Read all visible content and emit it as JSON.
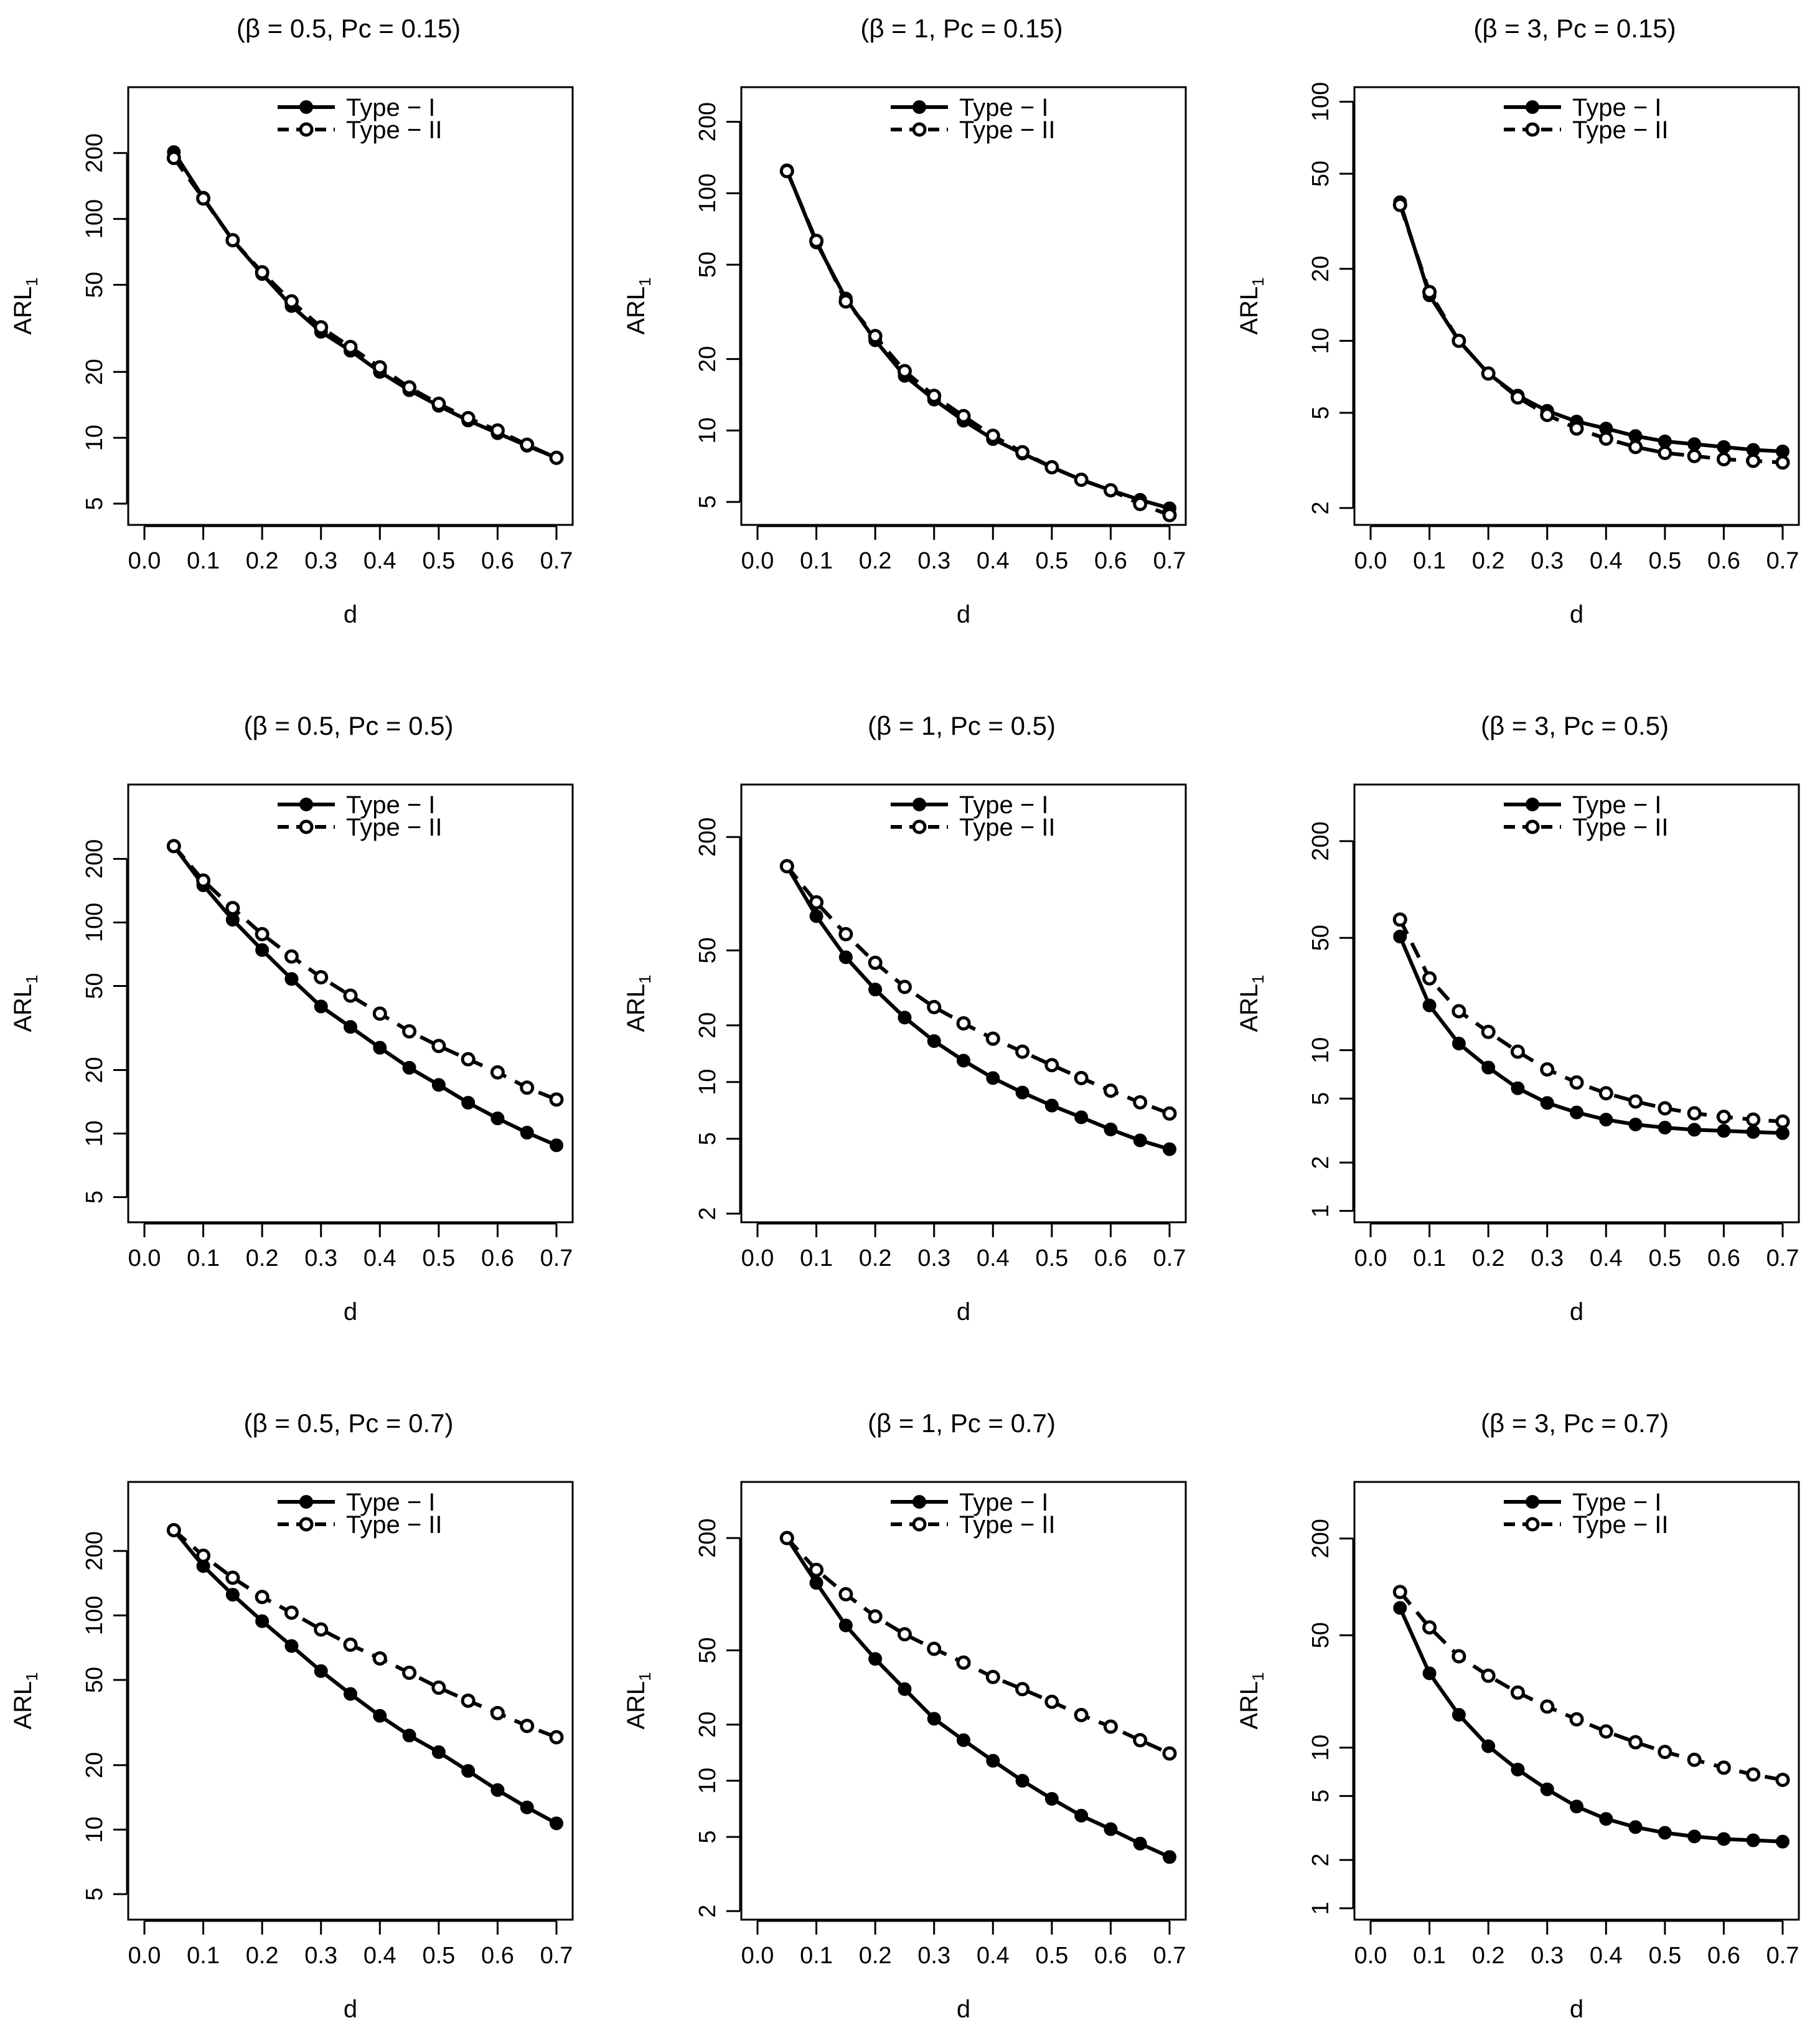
{
  "chart_data": [
    {
      "type": "line",
      "title": "(β = 0.5, Pc = 0.15)",
      "xlabel": "d",
      "ylabel": "ARL",
      "ylabel_sub": "1",
      "xlim": [
        0.0,
        0.7
      ],
      "xticks": [
        0.0,
        0.1,
        0.2,
        0.3,
        0.4,
        0.5,
        0.6,
        0.7
      ],
      "xtick_labels": [
        "0.0",
        "0.1",
        "0.2",
        "0.3",
        "0.4",
        "0.5",
        "0.6",
        "0.7"
      ],
      "ylog": true,
      "ylim": [
        4.0,
        400
      ],
      "yticks": [
        5,
        10,
        20,
        50,
        100,
        200
      ],
      "ytick_labels": [
        "5",
        "10",
        "20",
        "50",
        "100",
        "200"
      ],
      "legend": {
        "position": "top-center",
        "entries": [
          "Type − I",
          "Type − II"
        ]
      },
      "x": [
        0.05,
        0.1,
        0.15,
        0.2,
        0.25,
        0.3,
        0.35,
        0.4,
        0.45,
        0.5,
        0.55,
        0.6,
        0.65,
        0.7
      ],
      "series": [
        {
          "name": "Type − I",
          "style": "solid-filled",
          "values": [
            202,
            125,
            80,
            56,
            40,
            30.5,
            25,
            20,
            16.5,
            14,
            12,
            10.5,
            9.2,
            8.1
          ]
        },
        {
          "name": "Type − II",
          "style": "dashed-open",
          "values": [
            190,
            124,
            80,
            57,
            42,
            32,
            26,
            21,
            17,
            14.3,
            12.3,
            10.8,
            9.3,
            8.1
          ]
        }
      ]
    },
    {
      "type": "line",
      "title": "(β = 1, Pc = 0.15)",
      "xlabel": "d",
      "ylabel": "ARL",
      "ylabel_sub": "1",
      "xlim": [
        0.0,
        0.7
      ],
      "xticks": [
        0.0,
        0.1,
        0.2,
        0.3,
        0.4,
        0.5,
        0.6,
        0.7
      ],
      "xtick_labels": [
        "0.0",
        "0.1",
        "0.2",
        "0.3",
        "0.4",
        "0.5",
        "0.6",
        "0.7"
      ],
      "ylog": true,
      "ylim": [
        4.0,
        280
      ],
      "yticks": [
        5,
        10,
        20,
        50,
        100,
        200
      ],
      "ytick_labels": [
        "5",
        "10",
        "20",
        "50",
        "100",
        "200"
      ],
      "legend": {
        "position": "top-center",
        "entries": [
          "Type − I",
          "Type − II"
        ]
      },
      "x": [
        0.05,
        0.1,
        0.15,
        0.2,
        0.25,
        0.3,
        0.35,
        0.4,
        0.45,
        0.5,
        0.55,
        0.6,
        0.65,
        0.7
      ],
      "series": [
        {
          "name": "Type − I",
          "style": "solid-filled",
          "values": [
            125,
            62,
            36,
            24,
            17,
            13.5,
            11,
            9.2,
            8.0,
            7.0,
            6.2,
            5.6,
            5.1,
            4.7
          ]
        },
        {
          "name": "Type − II",
          "style": "dashed-open",
          "values": [
            124,
            63,
            35,
            25,
            17.8,
            14,
            11.5,
            9.5,
            8.1,
            7.0,
            6.2,
            5.6,
            4.9,
            4.4
          ]
        }
      ]
    },
    {
      "type": "line",
      "title": "(β = 3, Pc = 0.15)",
      "xlabel": "d",
      "ylabel": "ARL",
      "ylabel_sub": "1",
      "xlim": [
        0.0,
        0.7
      ],
      "xticks": [
        0.0,
        0.1,
        0.2,
        0.3,
        0.4,
        0.5,
        0.6,
        0.7
      ],
      "xtick_labels": [
        "0.0",
        "0.1",
        "0.2",
        "0.3",
        "0.4",
        "0.5",
        "0.6",
        "0.7"
      ],
      "ylog": true,
      "ylim": [
        1.7,
        115
      ],
      "yticks": [
        2,
        5,
        10,
        20,
        50,
        100
      ],
      "ytick_labels": [
        "2",
        "5",
        "10",
        "20",
        "50",
        "100"
      ],
      "legend": {
        "position": "top-center",
        "entries": [
          "Type − I",
          "Type − II"
        ]
      },
      "x": [
        0.05,
        0.1,
        0.15,
        0.2,
        0.25,
        0.3,
        0.35,
        0.4,
        0.45,
        0.5,
        0.55,
        0.6,
        0.65,
        0.7
      ],
      "series": [
        {
          "name": "Type − I",
          "style": "solid-filled",
          "values": [
            38,
            15.5,
            10,
            7.3,
            5.9,
            5.1,
            4.6,
            4.3,
            4.0,
            3.8,
            3.7,
            3.6,
            3.5,
            3.45
          ]
        },
        {
          "name": "Type − II",
          "style": "dashed-open",
          "values": [
            37,
            16,
            10,
            7.3,
            5.8,
            4.9,
            4.3,
            3.9,
            3.6,
            3.4,
            3.3,
            3.2,
            3.15,
            3.1
          ]
        }
      ]
    },
    {
      "type": "line",
      "title": "(β = 0.5, Pc = 0.5)",
      "xlabel": "d",
      "ylabel": "ARL",
      "ylabel_sub": "1",
      "xlim": [
        0.0,
        0.7
      ],
      "xticks": [
        0.0,
        0.1,
        0.2,
        0.3,
        0.4,
        0.5,
        0.6,
        0.7
      ],
      "xtick_labels": [
        "0.0",
        "0.1",
        "0.2",
        "0.3",
        "0.4",
        "0.5",
        "0.6",
        "0.7"
      ],
      "ylog": true,
      "ylim": [
        3.8,
        450
      ],
      "yticks": [
        5,
        10,
        20,
        50,
        100,
        200
      ],
      "ytick_labels": [
        "5",
        "10",
        "20",
        "50",
        "100",
        "200"
      ],
      "legend": {
        "position": "top-center",
        "entries": [
          "Type − I",
          "Type − II"
        ]
      },
      "x": [
        0.05,
        0.1,
        0.15,
        0.2,
        0.25,
        0.3,
        0.35,
        0.4,
        0.45,
        0.5,
        0.55,
        0.6,
        0.65,
        0.7
      ],
      "series": [
        {
          "name": "Type − I",
          "style": "solid-filled",
          "values": [
            230,
            150,
            103,
            74,
            54,
            40,
            32,
            25.5,
            20.5,
            17,
            14,
            11.8,
            10.1,
            8.8
          ]
        },
        {
          "name": "Type − II",
          "style": "dashed-open",
          "values": [
            230,
            158,
            117,
            88,
            69,
            55,
            45,
            37,
            30.5,
            26,
            22.5,
            19.5,
            16.5,
            14.5
          ]
        }
      ]
    },
    {
      "type": "line",
      "title": "(β = 1, Pc = 0.5)",
      "xlabel": "d",
      "ylabel": "ARL",
      "ylabel_sub": "1",
      "xlim": [
        0.0,
        0.7
      ],
      "xticks": [
        0.0,
        0.1,
        0.2,
        0.3,
        0.4,
        0.5,
        0.6,
        0.7
      ],
      "xtick_labels": [
        "0.0",
        "0.1",
        "0.2",
        "0.3",
        "0.4",
        "0.5",
        "0.6",
        "0.7"
      ],
      "ylog": true,
      "ylim": [
        1.8,
        380
      ],
      "yticks": [
        2,
        5,
        10,
        20,
        50,
        200
      ],
      "ytick_labels": [
        "2",
        "5",
        "10",
        "20",
        "50",
        "200"
      ],
      "legend": {
        "position": "top-center",
        "entries": [
          "Type − I",
          "Type − II"
        ]
      },
      "x": [
        0.05,
        0.1,
        0.15,
        0.2,
        0.25,
        0.3,
        0.35,
        0.4,
        0.45,
        0.5,
        0.55,
        0.6,
        0.65,
        0.7
      ],
      "series": [
        {
          "name": "Type − I",
          "style": "solid-filled",
          "values": [
            140,
            76,
            46,
            31,
            22,
            16.5,
            13,
            10.5,
            8.8,
            7.5,
            6.5,
            5.6,
            4.9,
            4.4
          ]
        },
        {
          "name": "Type − II",
          "style": "dashed-open",
          "values": [
            140,
            90,
            61,
            43,
            32,
            25,
            20.5,
            17,
            14.5,
            12.3,
            10.5,
            9.0,
            7.8,
            6.8
          ]
        }
      ]
    },
    {
      "type": "line",
      "title": "(β = 3, Pc = 0.5)",
      "xlabel": "d",
      "ylabel": "ARL",
      "ylabel_sub": "1",
      "xlim": [
        0.0,
        0.7
      ],
      "xticks": [
        0.0,
        0.1,
        0.2,
        0.3,
        0.4,
        0.5,
        0.6,
        0.7
      ],
      "xtick_labels": [
        "0.0",
        "0.1",
        "0.2",
        "0.3",
        "0.4",
        "0.5",
        "0.6",
        "0.7"
      ],
      "ylog": true,
      "ylim": [
        0.85,
        450
      ],
      "yticks": [
        1,
        2,
        5,
        10,
        50,
        200
      ],
      "ytick_labels": [
        "1",
        "2",
        "5",
        "10",
        "50",
        "200"
      ],
      "legend": {
        "position": "top-center",
        "entries": [
          "Type − I",
          "Type − II"
        ]
      },
      "x": [
        0.05,
        0.1,
        0.15,
        0.2,
        0.25,
        0.3,
        0.35,
        0.4,
        0.45,
        0.5,
        0.55,
        0.6,
        0.65,
        0.7
      ],
      "series": [
        {
          "name": "Type − I",
          "style": "solid-filled",
          "values": [
            51,
            19,
            11,
            7.8,
            5.8,
            4.7,
            4.1,
            3.7,
            3.45,
            3.3,
            3.2,
            3.15,
            3.1,
            3.05
          ]
        },
        {
          "name": "Type − II",
          "style": "dashed-open",
          "values": [
            65,
            28,
            17.5,
            13,
            9.8,
            7.6,
            6.3,
            5.4,
            4.8,
            4.35,
            4.05,
            3.85,
            3.7,
            3.6
          ]
        }
      ]
    },
    {
      "type": "line",
      "title": "(β = 0.5, Pc = 0.7)",
      "xlabel": "d",
      "ylabel": "ARL",
      "ylabel_sub": "1",
      "xlim": [
        0.0,
        0.7
      ],
      "xticks": [
        0.0,
        0.1,
        0.2,
        0.3,
        0.4,
        0.5,
        0.6,
        0.7
      ],
      "xtick_labels": [
        "0.0",
        "0.1",
        "0.2",
        "0.3",
        "0.4",
        "0.5",
        "0.6",
        "0.7"
      ],
      "ylog": true,
      "ylim": [
        3.8,
        420
      ],
      "yticks": [
        5,
        10,
        20,
        50,
        100,
        200
      ],
      "ytick_labels": [
        "5",
        "10",
        "20",
        "50",
        "100",
        "200"
      ],
      "legend": {
        "position": "top-center",
        "entries": [
          "Type − I",
          "Type − II"
        ]
      },
      "x": [
        0.05,
        0.1,
        0.15,
        0.2,
        0.25,
        0.3,
        0.35,
        0.4,
        0.45,
        0.5,
        0.55,
        0.6,
        0.65,
        0.7
      ],
      "series": [
        {
          "name": "Type − I",
          "style": "solid-filled",
          "values": [
            250,
            170,
            125,
            94,
            72,
            55,
            43,
            34,
            27.5,
            23,
            18.8,
            15.3,
            12.7,
            10.7
          ]
        },
        {
          "name": "Type − II",
          "style": "dashed-open",
          "values": [
            250,
            190,
            150,
            122,
            103,
            86,
            73,
            63,
            54,
            46,
            40,
            35,
            30.5,
            27
          ]
        }
      ]
    },
    {
      "type": "line",
      "title": "(β = 1, Pc = 0.7)",
      "xlabel": "d",
      "ylabel": "ARL",
      "ylabel_sub": "1",
      "xlim": [
        0.0,
        0.7
      ],
      "xticks": [
        0.0,
        0.1,
        0.2,
        0.3,
        0.4,
        0.5,
        0.6,
        0.7
      ],
      "xtick_labels": [
        "0.0",
        "0.1",
        "0.2",
        "0.3",
        "0.4",
        "0.5",
        "0.6",
        "0.7"
      ],
      "ylog": true,
      "ylim": [
        1.8,
        400
      ],
      "yticks": [
        2,
        5,
        10,
        20,
        50,
        200
      ],
      "ytick_labels": [
        "2",
        "5",
        "10",
        "20",
        "50",
        "200"
      ],
      "legend": {
        "position": "top-center",
        "entries": [
          "Type − I",
          "Type − II"
        ]
      },
      "x": [
        0.05,
        0.1,
        0.15,
        0.2,
        0.25,
        0.3,
        0.35,
        0.4,
        0.45,
        0.5,
        0.55,
        0.6,
        0.65,
        0.7
      ],
      "series": [
        {
          "name": "Type − I",
          "style": "solid-filled",
          "values": [
            200,
            115,
            68,
            45,
            31,
            21.5,
            16.5,
            12.8,
            10,
            8.0,
            6.5,
            5.5,
            4.6,
            3.9
          ]
        },
        {
          "name": "Type − II",
          "style": "dashed-open",
          "values": [
            200,
            135,
            100,
            76,
            61,
            51,
            43,
            36,
            31,
            26.5,
            22.5,
            19.5,
            16.5,
            14
          ]
        }
      ]
    },
    {
      "type": "line",
      "title": "(β = 3, Pc = 0.7)",
      "xlabel": "d",
      "ylabel": "ARL",
      "ylabel_sub": "1",
      "xlim": [
        0.0,
        0.7
      ],
      "xticks": [
        0.0,
        0.1,
        0.2,
        0.3,
        0.4,
        0.5,
        0.6,
        0.7
      ],
      "xtick_labels": [
        "0.0",
        "0.1",
        "0.2",
        "0.3",
        "0.4",
        "0.5",
        "0.6",
        "0.7"
      ],
      "ylog": true,
      "ylim": [
        0.85,
        450
      ],
      "yticks": [
        1,
        2,
        5,
        10,
        50,
        200
      ],
      "ytick_labels": [
        "1",
        "2",
        "5",
        "10",
        "50",
        "200"
      ],
      "legend": {
        "position": "top-center",
        "entries": [
          "Type − I",
          "Type − II"
        ]
      },
      "x": [
        0.05,
        0.1,
        0.15,
        0.2,
        0.25,
        0.3,
        0.35,
        0.4,
        0.45,
        0.5,
        0.55,
        0.6,
        0.65,
        0.7
      ],
      "series": [
        {
          "name": "Type − I",
          "style": "solid-filled",
          "values": [
            74,
            29,
            16,
            10.2,
            7.3,
            5.5,
            4.3,
            3.6,
            3.2,
            2.95,
            2.8,
            2.7,
            2.65,
            2.6
          ]
        },
        {
          "name": "Type − II",
          "style": "dashed-open",
          "values": [
            93,
            56,
            37,
            28,
            22,
            18,
            15,
            12.6,
            10.8,
            9.4,
            8.4,
            7.5,
            6.8,
            6.3
          ]
        }
      ]
    }
  ]
}
